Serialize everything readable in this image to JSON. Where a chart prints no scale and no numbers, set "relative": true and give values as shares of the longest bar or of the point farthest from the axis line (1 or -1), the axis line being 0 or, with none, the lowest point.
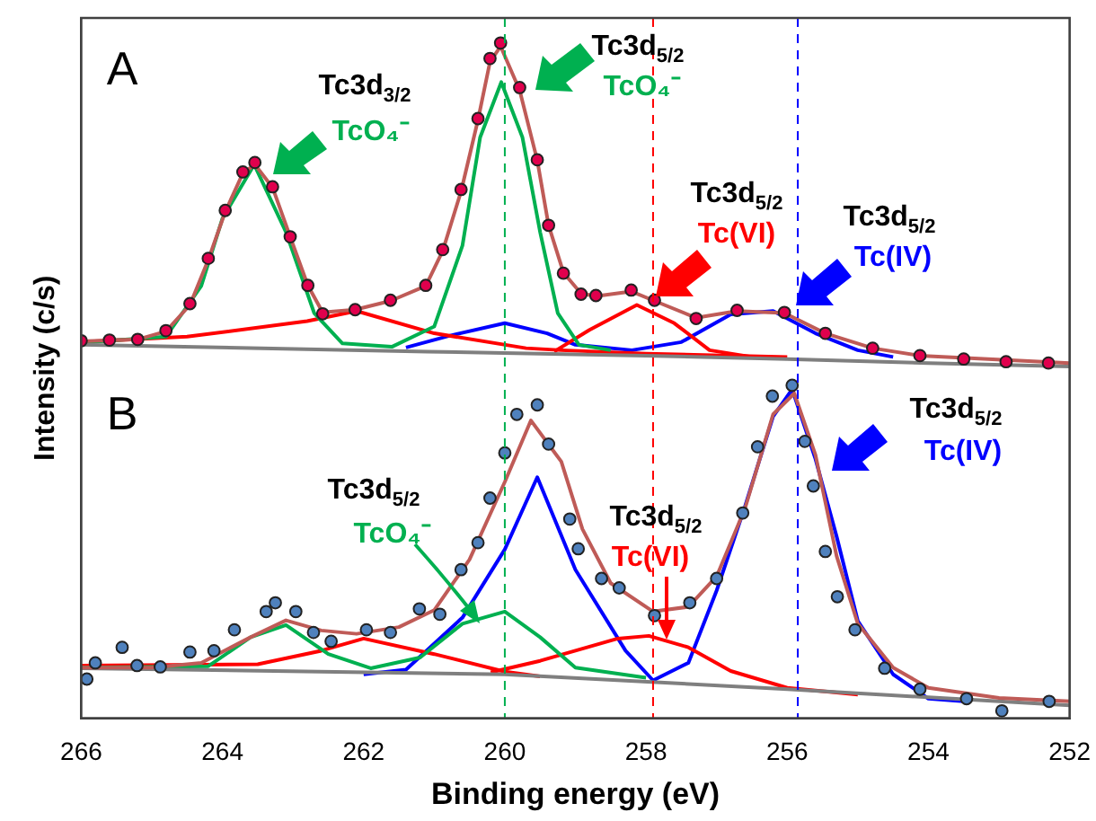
{
  "chart_data": {
    "type": "line",
    "relative": true,
    "xlabel": "Binding energy (eV)",
    "ylabel": "Intensity (c/s)",
    "xlim": [
      266,
      252
    ],
    "xticks": [
      266,
      264,
      262,
      260,
      258,
      256,
      254,
      252
    ],
    "tick_labels": "x",
    "grid": false,
    "legend": false,
    "series": [
      {
        "type": "scatter",
        "color": "#e0004d",
        "x": [
          266.0,
          265.6,
          265.2,
          264.8,
          264.46,
          264.2,
          263.96,
          263.71,
          263.54,
          263.29,
          263.04,
          262.79,
          262.58,
          262.12,
          261.62,
          261.12,
          260.88,
          260.62,
          260.38,
          260.21,
          260.06,
          259.79,
          259.54,
          259.38,
          259.17,
          258.92,
          258.71,
          258.21,
          257.88,
          257.29,
          256.71,
          256.04,
          255.46,
          254.79,
          254.12,
          253.5,
          252.9,
          252.3
        ],
        "values": [
          0.559,
          0.56,
          0.561,
          0.574,
          0.614,
          0.681,
          0.752,
          0.809,
          0.823,
          0.787,
          0.713,
          0.641,
          0.599,
          0.605,
          0.619,
          0.641,
          0.694,
          0.783,
          0.888,
          0.977,
          1.0,
          0.934,
          0.827,
          0.73,
          0.659,
          0.628,
          0.626,
          0.634,
          0.619,
          0.592,
          0.604,
          0.601,
          0.57,
          0.548,
          0.537,
          0.532,
          0.528,
          0.526
        ]
      },
      {
        "color": "#bf5b57",
        "x": [
          266.0,
          265.2,
          264.8,
          264.46,
          264.2,
          263.96,
          263.71,
          263.54,
          263.29,
          263.04,
          262.79,
          262.58,
          262.12,
          261.62,
          261.12,
          260.88,
          260.62,
          260.38,
          260.21,
          260.06,
          259.79,
          259.54,
          259.38,
          259.17,
          258.92,
          258.71,
          258.21,
          257.88,
          257.29,
          256.71,
          256.04,
          255.46,
          254.79,
          254.12,
          252.0
        ],
        "values": [
          0.558,
          0.561,
          0.573,
          0.612,
          0.679,
          0.75,
          0.807,
          0.82,
          0.786,
          0.713,
          0.641,
          0.601,
          0.605,
          0.618,
          0.64,
          0.692,
          0.78,
          0.886,
          0.972,
          0.995,
          0.93,
          0.826,
          0.73,
          0.66,
          0.629,
          0.625,
          0.632,
          0.618,
          0.593,
          0.603,
          0.6,
          0.57,
          0.548,
          0.537,
          0.526
        ]
      },
      {
        "color": "#7f7f7f",
        "x": [
          266.0,
          261.1,
          258.0,
          256.0,
          254.0,
          252.0
        ],
        "values": [
          0.553,
          0.543,
          0.537,
          0.532,
          0.526,
          0.521
        ]
      },
      {
        "color": "#00b050",
        "x": [
          266.0,
          264.8,
          264.3,
          264.0,
          263.55,
          263.1,
          262.7,
          262.3,
          261.6,
          261.0,
          260.6,
          260.35,
          260.05,
          259.75,
          259.5,
          259.25,
          258.95,
          258.5
        ],
        "values": [
          0.556,
          0.565,
          0.64,
          0.74,
          0.82,
          0.72,
          0.6,
          0.555,
          0.55,
          0.58,
          0.7,
          0.86,
          0.942,
          0.86,
          0.72,
          0.6,
          0.553,
          0.545
        ]
      },
      {
        "color": "#ff0000",
        "x": [
          266.0,
          264.5,
          262.8,
          262.1,
          261.0,
          259.7,
          259.2,
          258.0,
          256.0
        ],
        "values": [
          0.557,
          0.565,
          0.588,
          0.603,
          0.57,
          0.548,
          0.545,
          0.54,
          0.535
        ]
      },
      {
        "color": "#ff0000",
        "x": [
          259.3,
          258.8,
          258.13,
          257.6,
          257.1,
          256.5
        ],
        "values": [
          0.543,
          0.575,
          0.612,
          0.585,
          0.545,
          0.535
        ]
      },
      {
        "color": "#0000ff",
        "x": [
          261.4,
          260.8,
          260.0,
          259.4,
          259.0,
          258.2,
          257.5,
          256.8,
          256.2,
          255.6,
          255.0,
          254.5
        ],
        "values": [
          0.549,
          0.566,
          0.585,
          0.57,
          0.553,
          0.545,
          0.557,
          0.598,
          0.603,
          0.57,
          0.545,
          0.535
        ]
      },
      {
        "type": "scatter",
        "color": "#4f81bd",
        "x": [
          265.92,
          265.8,
          265.42,
          265.21,
          264.88,
          264.46,
          264.12,
          263.83,
          263.38,
          263.25,
          262.96,
          262.71,
          262.46,
          261.96,
          261.62,
          261.21,
          260.92,
          260.62,
          260.38,
          260.21,
          260.0,
          259.83,
          259.54,
          259.38,
          259.08,
          258.96,
          258.63,
          258.38,
          257.88,
          257.38,
          257.0,
          256.63,
          256.42,
          256.21,
          255.93,
          255.75,
          255.63,
          255.46,
          255.29,
          255.04,
          254.62,
          254.12,
          253.46,
          252.96,
          252.29
        ],
        "values": [
          0.058,
          0.082,
          0.105,
          0.078,
          0.076,
          0.098,
          0.1,
          0.131,
          0.158,
          0.171,
          0.158,
          0.127,
          0.114,
          0.131,
          0.127,
          0.162,
          0.154,
          0.22,
          0.26,
          0.326,
          0.393,
          0.45,
          0.464,
          0.406,
          0.295,
          0.251,
          0.207,
          0.193,
          0.152,
          0.171,
          0.207,
          0.304,
          0.402,
          0.477,
          0.493,
          0.41,
          0.344,
          0.247,
          0.18,
          0.131,
          0.074,
          0.043,
          0.029,
          0.011,
          0.025
        ]
      },
      {
        "color": "#bf5b57",
        "x": [
          266.0,
          265.0,
          264.3,
          263.6,
          263.1,
          262.6,
          262.1,
          261.5,
          261.0,
          260.5,
          260.0,
          259.63,
          259.2,
          258.9,
          258.5,
          257.9,
          257.4,
          257.0,
          256.6,
          256.2,
          255.9,
          255.6,
          255.3,
          255.0,
          254.5,
          254.0,
          253.0,
          252.0
        ],
        "values": [
          0.075,
          0.075,
          0.082,
          0.12,
          0.145,
          0.13,
          0.125,
          0.135,
          0.16,
          0.235,
          0.35,
          0.441,
          0.38,
          0.28,
          0.2,
          0.158,
          0.165,
          0.21,
          0.31,
          0.45,
          0.481,
          0.39,
          0.24,
          0.14,
          0.075,
          0.045,
          0.03,
          0.025
        ]
      },
      {
        "color": "#7f7f7f",
        "x": [
          266.0,
          260.0,
          256.0,
          252.0
        ],
        "values": [
          0.074,
          0.065,
          0.043,
          0.019
        ]
      },
      {
        "color": "#00b050",
        "x": [
          266.0,
          264.2,
          263.6,
          263.1,
          262.5,
          261.9,
          261.2,
          260.6,
          260.0,
          259.5,
          259.0,
          258.0
        ],
        "values": [
          0.075,
          0.077,
          0.12,
          0.138,
          0.095,
          0.074,
          0.09,
          0.14,
          0.158,
          0.12,
          0.075,
          0.06
        ]
      },
      {
        "color": "#ff0000",
        "x": [
          266.0,
          263.5,
          262.6,
          262.0,
          261.0,
          260.0,
          259.5
        ],
        "values": [
          0.078,
          0.08,
          0.1,
          0.118,
          0.095,
          0.069,
          0.062
        ]
      },
      {
        "color": "#ff0000",
        "x": [
          260.2,
          259.5,
          259.0,
          258.4,
          257.96,
          257.4,
          256.8,
          256.0,
          255.0
        ],
        "values": [
          0.068,
          0.085,
          0.1,
          0.118,
          0.122,
          0.105,
          0.07,
          0.045,
          0.035
        ]
      },
      {
        "color": "#0000ff",
        "x": [
          262.0,
          261.4,
          260.6,
          260.0,
          259.54,
          259.0,
          258.29,
          257.9,
          257.4,
          257.0,
          256.6,
          256.2,
          255.93,
          255.6,
          255.3,
          255.0,
          254.5,
          254.0,
          253.5
        ],
        "values": [
          0.065,
          0.072,
          0.149,
          0.25,
          0.357,
          0.22,
          0.1,
          0.056,
          0.082,
          0.189,
          0.313,
          0.447,
          0.487,
          0.384,
          0.269,
          0.144,
          0.065,
          0.029,
          0.025
        ]
      }
    ],
    "ref_lines": [
      {
        "axis": "x",
        "value": 260,
        "color": "#00b050",
        "line_style": "dashed"
      },
      {
        "axis": "x",
        "value": 257.9,
        "color": "#ff0000",
        "line_style": "dashed"
      },
      {
        "axis": "x",
        "value": 255.85,
        "color": "#0000ff",
        "line_style": "dashed"
      }
    ],
    "annotations": [
      "A",
      "B",
      "Tc3d$_{3/2}$",
      "TcO₄⁻",
      "Tc3d$_{5/2}$",
      "TcO₄⁻",
      "Tc3d$_{5/2}$",
      "Tc(VI)",
      "Tc3d$_{5/2}$",
      "Tc(IV)",
      "Tc3d$_{5/2}$",
      "Tc(IV)",
      "Tc3d$_{5/2}$",
      "TcO₄⁻",
      "Tc3d$_{5/2}$",
      "Tc(VI)"
    ]
  }
}
